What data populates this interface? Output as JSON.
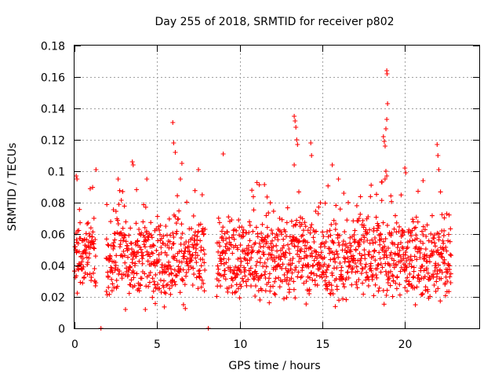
{
  "chart_data": {
    "type": "scatter",
    "title": "Day 255 of 2018, SRMTID for receiver p802",
    "xlabel": "GPS time / hours",
    "ylabel": "SRMTID / TECUs",
    "xlim": [
      0,
      24.5
    ],
    "ylim": [
      0,
      0.18
    ],
    "x_ticks": [
      0,
      5,
      10,
      15,
      20
    ],
    "x_tick_labels": [
      "0",
      "5",
      "10",
      "15",
      "20"
    ],
    "y_ticks": [
      0,
      0.02,
      0.04,
      0.06,
      0.08,
      0.1,
      0.12,
      0.14,
      0.16,
      0.18
    ],
    "y_tick_labels": [
      "0",
      "0.02",
      "0.04",
      "0.06",
      "0.08",
      "0.1",
      "0.12",
      "0.14",
      "0.16",
      "0.18"
    ],
    "grid": true,
    "marker": "+",
    "color": "#ff0000",
    "x_range_hours": [
      0.0,
      22.8
    ],
    "typical_value_range": [
      0.02,
      0.07
    ],
    "peak_points": [
      {
        "x": 0.1,
        "y": 0.097
      },
      {
        "x": 0.15,
        "y": 0.095
      },
      {
        "x": 1.3,
        "y": 0.101
      },
      {
        "x": 3.5,
        "y": 0.106
      },
      {
        "x": 3.55,
        "y": 0.104
      },
      {
        "x": 5.95,
        "y": 0.131
      },
      {
        "x": 6.0,
        "y": 0.118
      },
      {
        "x": 6.1,
        "y": 0.112
      },
      {
        "x": 6.5,
        "y": 0.105
      },
      {
        "x": 7.5,
        "y": 0.101
      },
      {
        "x": 9.0,
        "y": 0.111
      },
      {
        "x": 13.3,
        "y": 0.135
      },
      {
        "x": 13.35,
        "y": 0.132
      },
      {
        "x": 13.4,
        "y": 0.128
      },
      {
        "x": 13.45,
        "y": 0.12
      },
      {
        "x": 13.5,
        "y": 0.117
      },
      {
        "x": 13.3,
        "y": 0.104
      },
      {
        "x": 14.3,
        "y": 0.118
      },
      {
        "x": 14.35,
        "y": 0.11
      },
      {
        "x": 15.6,
        "y": 0.104
      },
      {
        "x": 18.7,
        "y": 0.122
      },
      {
        "x": 18.75,
        "y": 0.119
      },
      {
        "x": 18.9,
        "y": 0.164
      },
      {
        "x": 18.92,
        "y": 0.162
      },
      {
        "x": 18.95,
        "y": 0.143
      },
      {
        "x": 18.9,
        "y": 0.133
      },
      {
        "x": 18.85,
        "y": 0.127
      },
      {
        "x": 18.8,
        "y": 0.116
      },
      {
        "x": 18.85,
        "y": 0.1
      },
      {
        "x": 18.9,
        "y": 0.097
      },
      {
        "x": 20.0,
        "y": 0.102
      },
      {
        "x": 20.05,
        "y": 0.099
      },
      {
        "x": 21.1,
        "y": 0.094
      },
      {
        "x": 21.95,
        "y": 0.117
      },
      {
        "x": 22.0,
        "y": 0.11
      },
      {
        "x": 22.05,
        "y": 0.101
      }
    ],
    "low_points": [
      {
        "x": 1.6,
        "y": 0.0
      },
      {
        "x": 8.1,
        "y": 0.0
      }
    ],
    "data_gaps": [
      [
        1.3,
        1.9
      ],
      [
        7.9,
        8.6
      ],
      [
        23.0,
        24.5
      ]
    ]
  }
}
